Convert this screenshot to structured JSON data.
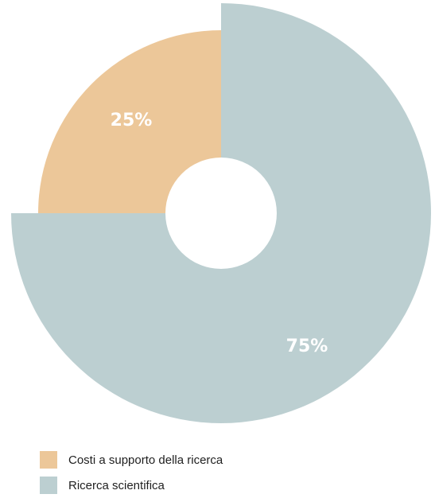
{
  "chart_data": {
    "type": "pie",
    "categories": [
      "Costi a supporto della ricerca",
      "Ricerca scientifica"
    ],
    "values": [
      25,
      75
    ],
    "value_labels": [
      "25%",
      "75%"
    ],
    "colors": [
      "#ecc799",
      "#bccfd1"
    ],
    "hole_color": "#ffffff",
    "legend_position": "bottom-left",
    "style": "donut with exploded radii",
    "title": "",
    "xlabel": "",
    "ylabel": ""
  },
  "legend": {
    "items": [
      {
        "label": "Costi a supporto della ricerca",
        "color": "#ecc799"
      },
      {
        "label": "Ricerca scientifica",
        "color": "#bccfd1"
      }
    ]
  }
}
